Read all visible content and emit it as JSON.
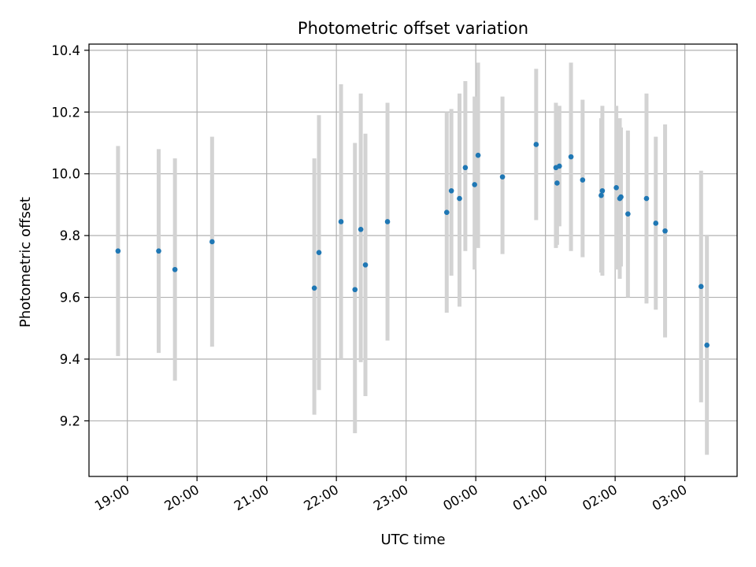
{
  "chart_data": {
    "type": "scatter",
    "title": "Photometric offset variation",
    "xlabel": "UTC time",
    "ylabel": "Photometric offset",
    "x_unit": "UTC clock time",
    "xlim": [
      "18:27",
      "03:45"
    ],
    "ylim": [
      9.02,
      10.42
    ],
    "x_ticks": [
      "19:00",
      "20:00",
      "21:00",
      "22:00",
      "23:00",
      "00:00",
      "01:00",
      "02:00",
      "03:00"
    ],
    "y_ticks": [
      "9.2",
      "9.4",
      "9.6",
      "9.8",
      "10.0",
      "10.2",
      "10.4"
    ],
    "grid": true,
    "colors": {
      "point": "#1f77b4",
      "errorbar": "#d3d3d3",
      "grid": "#b0b0b0",
      "axes": "#000000"
    },
    "series": [
      {
        "points": [
          {
            "x": "18:52",
            "y": 9.75,
            "low": 9.41,
            "high": 10.09
          },
          {
            "x": "19:27",
            "y": 9.75,
            "low": 9.42,
            "high": 10.08
          },
          {
            "x": "19:41",
            "y": 9.69,
            "low": 9.33,
            "high": 10.05
          },
          {
            "x": "20:13",
            "y": 9.78,
            "low": 9.44,
            "high": 10.12
          },
          {
            "x": "21:41",
            "y": 9.63,
            "low": 9.22,
            "high": 10.05
          },
          {
            "x": "21:45",
            "y": 9.745,
            "low": 9.3,
            "high": 10.19
          },
          {
            "x": "22:04",
            "y": 9.845,
            "low": 9.4,
            "high": 10.29
          },
          {
            "x": "22:16",
            "y": 9.625,
            "low": 9.16,
            "high": 10.1
          },
          {
            "x": "22:21",
            "y": 9.82,
            "low": 9.39,
            "high": 10.26
          },
          {
            "x": "22:25",
            "y": 9.705,
            "low": 9.28,
            "high": 10.13
          },
          {
            "x": "22:44",
            "y": 9.845,
            "low": 9.46,
            "high": 10.23
          },
          {
            "x": "23:35",
            "y": 9.875,
            "low": 9.55,
            "high": 10.2
          },
          {
            "x": "23:39",
            "y": 9.945,
            "low": 9.67,
            "high": 10.21
          },
          {
            "x": "23:46",
            "y": 9.92,
            "low": 9.57,
            "high": 10.26
          },
          {
            "x": "23:51",
            "y": 10.02,
            "low": 9.75,
            "high": 10.3
          },
          {
            "x": "23:59",
            "y": 9.965,
            "low": 9.69,
            "high": 10.25
          },
          {
            "x": "00:02",
            "y": 10.06,
            "low": 9.76,
            "high": 10.36
          },
          {
            "x": "00:23",
            "y": 9.99,
            "low": 9.74,
            "high": 10.25
          },
          {
            "x": "00:52",
            "y": 10.095,
            "low": 9.85,
            "high": 10.34
          },
          {
            "x": "01:09",
            "y": 10.02,
            "low": 9.76,
            "high": 10.23
          },
          {
            "x": "01:10",
            "y": 9.97,
            "low": 9.77,
            "high": 10.17
          },
          {
            "x": "01:12",
            "y": 10.025,
            "low": 9.83,
            "high": 10.22
          },
          {
            "x": "01:22",
            "y": 10.055,
            "low": 9.75,
            "high": 10.36
          },
          {
            "x": "01:32",
            "y": 9.98,
            "low": 9.73,
            "high": 10.24
          },
          {
            "x": "01:48",
            "y": 9.93,
            "low": 9.68,
            "high": 10.18
          },
          {
            "x": "01:49",
            "y": 9.945,
            "low": 9.67,
            "high": 10.22
          },
          {
            "x": "02:01",
            "y": 9.955,
            "low": 9.69,
            "high": 10.22
          },
          {
            "x": "02:04",
            "y": 9.92,
            "low": 9.66,
            "high": 10.18
          },
          {
            "x": "02:05",
            "y": 9.925,
            "low": 9.7,
            "high": 10.15
          },
          {
            "x": "02:11",
            "y": 9.87,
            "low": 9.6,
            "high": 10.14
          },
          {
            "x": "02:27",
            "y": 9.92,
            "low": 9.58,
            "high": 10.26
          },
          {
            "x": "02:35",
            "y": 9.84,
            "low": 9.56,
            "high": 10.12
          },
          {
            "x": "02:43",
            "y": 9.815,
            "low": 9.47,
            "high": 10.16
          },
          {
            "x": "03:14",
            "y": 9.635,
            "low": 9.26,
            "high": 10.01
          },
          {
            "x": "03:19",
            "y": 9.445,
            "low": 9.09,
            "high": 9.8
          }
        ]
      }
    ]
  }
}
